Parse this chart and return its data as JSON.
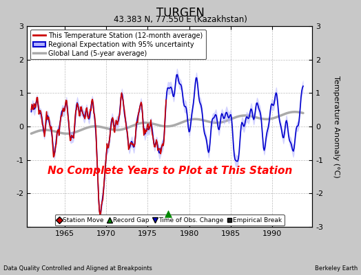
{
  "title": "TURGEN",
  "subtitle": "43.383 N, 77.550 E (Kazakhstan)",
  "ylabel": "Temperature Anomaly (°C)",
  "xlabel_left": "Data Quality Controlled and Aligned at Breakpoints",
  "xlabel_right": "Berkeley Earth",
  "annotation": "No Complete Years to Plot at This Station",
  "ylim": [
    -3,
    3
  ],
  "xlim_start": 1960.5,
  "xlim_end": 1994.8,
  "xticks": [
    1965,
    1970,
    1975,
    1980,
    1985,
    1990
  ],
  "yticks": [
    -3,
    -2,
    -1,
    0,
    1,
    2,
    3
  ],
  "bg_color": "#c8c8c8",
  "plot_bg_color": "#ffffff",
  "red_line_color": "#cc0000",
  "blue_line_color": "#0000cc",
  "blue_fill_color": "#b0b0ff",
  "gray_line_color": "#aaaaaa",
  "legend_labels": [
    "This Temperature Station (12-month average)",
    "Regional Expectation with 95% uncertainty",
    "Global Land (5-year average)"
  ],
  "marker_legend": [
    {
      "marker": "D",
      "color": "#cc0000",
      "label": "Station Move"
    },
    {
      "marker": "^",
      "color": "#008800",
      "label": "Record Gap"
    },
    {
      "marker": "v",
      "color": "#0000cc",
      "label": "Time of Obs. Change"
    },
    {
      "marker": "s",
      "color": "#222222",
      "label": "Empirical Break"
    }
  ],
  "record_gap_x": 1977.5,
  "record_gap_bottom": -2.6
}
